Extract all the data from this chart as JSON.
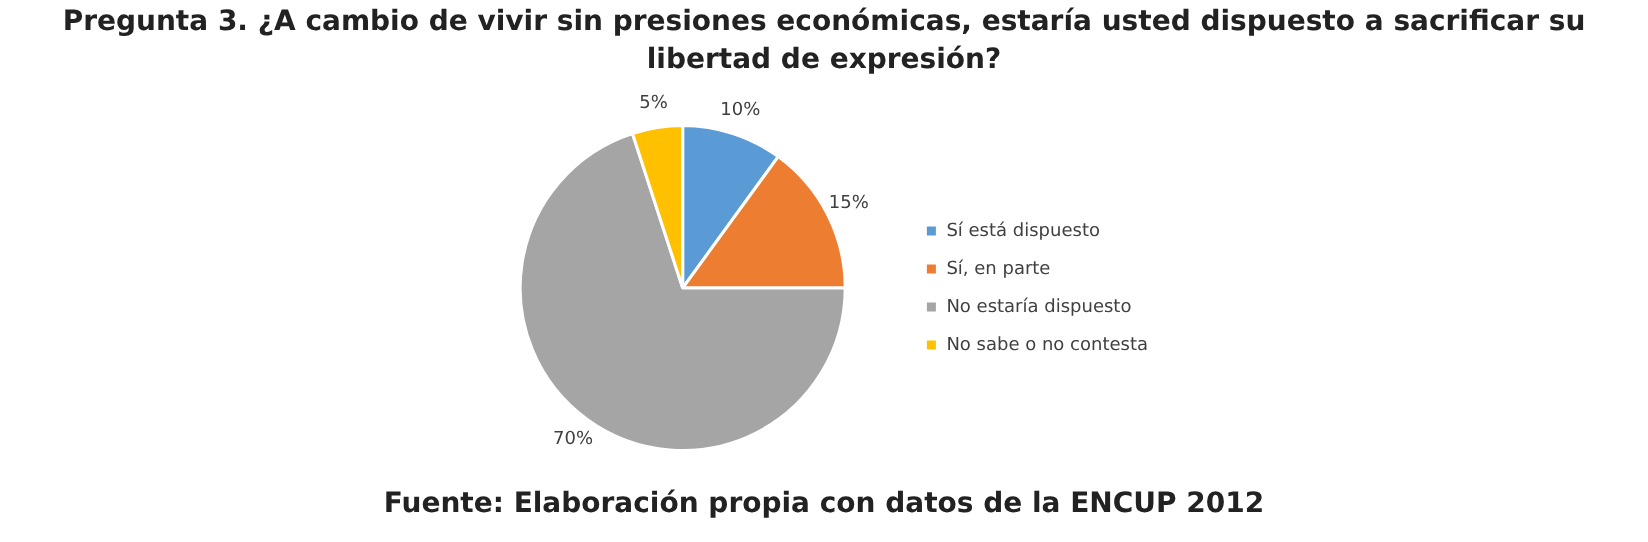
{
  "chart_data": {
    "type": "pie",
    "title": "Pregunta 3. ¿A cambio de vivir sin presiones económicas, estaría usted dispuesto a sacrificar su libertad de expresión?",
    "categories": [
      "Sí está dispuesto",
      "Sí, en parte",
      "No estaría dispuesto",
      "No sabe o no contesta"
    ],
    "values": [
      10,
      15,
      70,
      5
    ],
    "colors": [
      "#5b9bd5",
      "#ed7d31",
      "#a5a5a5",
      "#ffc000"
    ],
    "value_labels": [
      "10%",
      "15%",
      "70%",
      "5%"
    ],
    "legend": "right",
    "annotations": [
      "Fuente: Elaboración propia con datos de la ENCUP 2012"
    ]
  }
}
